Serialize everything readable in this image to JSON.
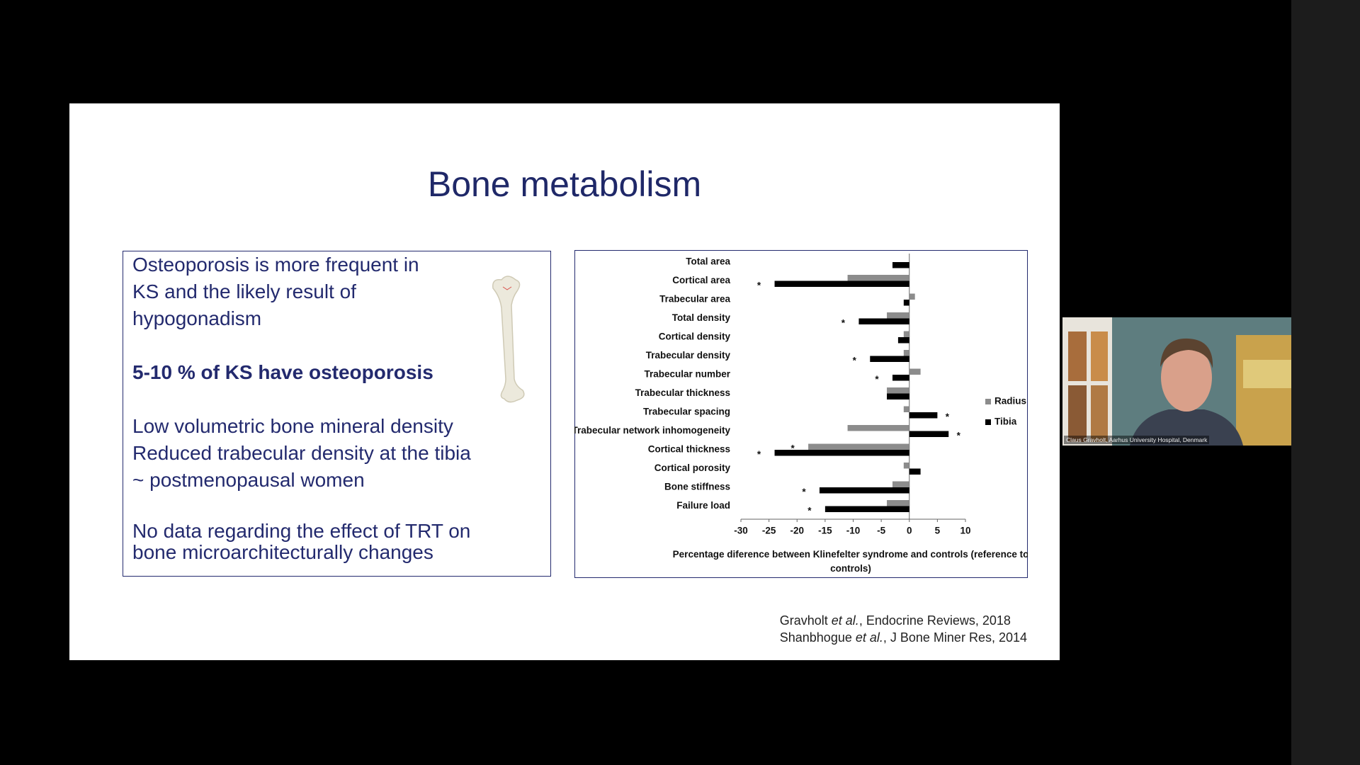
{
  "slide": {
    "title": "Bone metabolism",
    "text_box": {
      "paragraphs": [
        {
          "lines": [
            "Osteoporosis is more frequent in",
            "KS and the likely result of",
            "hypogonadism"
          ]
        },
        {
          "lines": [
            "5-10 % of KS have osteoporosis"
          ],
          "bold": true
        },
        {
          "lines": [
            "Low volumetric bone mineral density",
            "Reduced trabecular density at the tibia",
            "~ postmenopausal women"
          ]
        },
        {
          "lines": [
            "No data regarding the effect of TRT on",
            "bone microarchitecturally changes"
          ]
        }
      ]
    },
    "citations": [
      {
        "author": "Gravholt ",
        "etal": "et al.",
        "rest": ", Endocrine Reviews, 2018"
      },
      {
        "author": "Shanbhogue ",
        "etal": "et al.",
        "rest": ", J Bone Miner Res, 2014"
      }
    ]
  },
  "chart_data": {
    "type": "bar",
    "orientation": "horizontal",
    "categories": [
      "Total area",
      "Cortical area",
      "Trabecular area",
      "Total density",
      "Cortical density",
      "Trabecular density",
      "Trabecular number",
      "Trabecular thickness",
      "Trabecular spacing",
      "Trabecular network inhomogeneity",
      "Cortical thickness",
      "Cortical porosity",
      "Bone stiffness",
      "Failure load"
    ],
    "series": [
      {
        "name": "Radius",
        "color": "#8c8c8c",
        "values": [
          0,
          -11,
          1,
          -4,
          -1,
          -1,
          2,
          -4,
          -1,
          -11,
          -18,
          -1,
          -3,
          -4
        ],
        "significance": [
          null,
          null,
          null,
          null,
          null,
          null,
          null,
          null,
          null,
          null,
          "*",
          null,
          null,
          null
        ]
      },
      {
        "name": "Tibia",
        "color": "#000000",
        "values": [
          -3,
          -24,
          -1,
          -9,
          -2,
          -7,
          -3,
          -4,
          5,
          7,
          -24,
          2,
          -16,
          -15
        ],
        "significance": [
          null,
          "*",
          null,
          "*",
          null,
          "*",
          "*",
          null,
          "*",
          "*",
          "*",
          null,
          "*",
          "*"
        ]
      }
    ],
    "xlim": [
      -30,
      10
    ],
    "xticks": [
      -30,
      -25,
      -20,
      -15,
      -10,
      -5,
      0,
      5,
      10
    ],
    "xlabel": "Percentage diference between Klinefelter syndrome and controls (reference to controls)",
    "legend": "right"
  },
  "webcam": {
    "caption": "Claus Gravholt, Aarhus University Hospital, Denmark"
  }
}
